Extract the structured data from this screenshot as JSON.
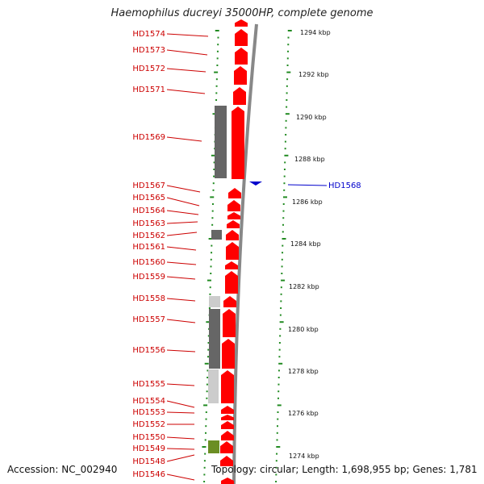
{
  "title": "Haemophilus ducreyi 35000HP, complete genome",
  "footer": {
    "accession": "Accession: NC_002940",
    "summary": "Topology: circular; Length: 1,698,955 bp; Genes: 1,781"
  },
  "colors": {
    "forward_gene": "#ff0000",
    "label_line": "#cc0000",
    "reverse_gene": "#0000cc",
    "tick": "#228b22",
    "backbone": "#888888",
    "gray_dark": "#666666",
    "gray_light": "#cccccc",
    "olive": "#6b8e23"
  },
  "scale_labels": [
    "1294 kbp",
    "1292 kbp",
    "1290 kbp",
    "1288 kbp",
    "1286 kbp",
    "1284 kbp",
    "1282 kbp",
    "1280 kbp",
    "1278 kbp",
    "1276 kbp",
    "1274 kbp"
  ],
  "forward_gene_labels": [
    "HD1574",
    "HD1573",
    "HD1572",
    "HD1571",
    "HD1569",
    "HD1567",
    "HD1565",
    "HD1564",
    "HD1563",
    "HD1562",
    "HD1561",
    "HD1560",
    "HD1559",
    "HD1558",
    "HD1557",
    "HD1556",
    "HD1555",
    "HD1554",
    "HD1553",
    "HD1552",
    "HD1550",
    "HD1549",
    "HD1548",
    "HD1546"
  ],
  "reverse_gene_labels": [
    "HD1568"
  ]
}
